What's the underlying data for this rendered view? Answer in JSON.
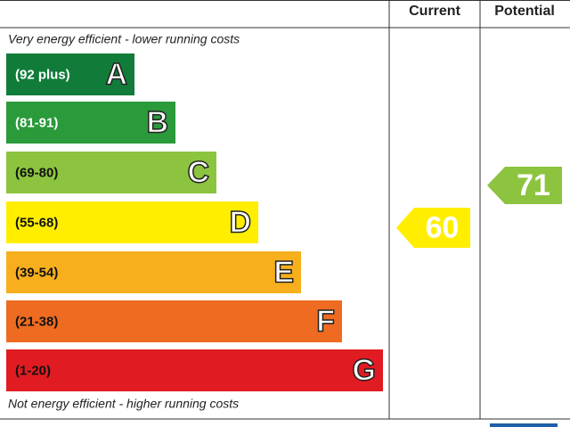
{
  "header": {
    "current": "Current",
    "potential": "Potential"
  },
  "top_note": "Very energy efficient - lower running costs",
  "bottom_note": "Not energy efficient - higher running costs",
  "bands": [
    {
      "range": "(92 plus)",
      "letter": "A",
      "color": "#117c3a"
    },
    {
      "range": "(81-91)",
      "letter": "B",
      "color": "#2a9a3a"
    },
    {
      "range": "(69-80)",
      "letter": "C",
      "color": "#8cc43f"
    },
    {
      "range": "(55-68)",
      "letter": "D",
      "color": "#ffee00"
    },
    {
      "range": "(39-54)",
      "letter": "E",
      "color": "#f7af1d"
    },
    {
      "range": "(21-38)",
      "letter": "F",
      "color": "#ee6b21"
    },
    {
      "range": "(1-20)",
      "letter": "G",
      "color": "#e11b22"
    }
  ],
  "current": {
    "value": 60,
    "color": "#ffee00"
  },
  "potential": {
    "value": 71,
    "color": "#8cc43f"
  }
}
